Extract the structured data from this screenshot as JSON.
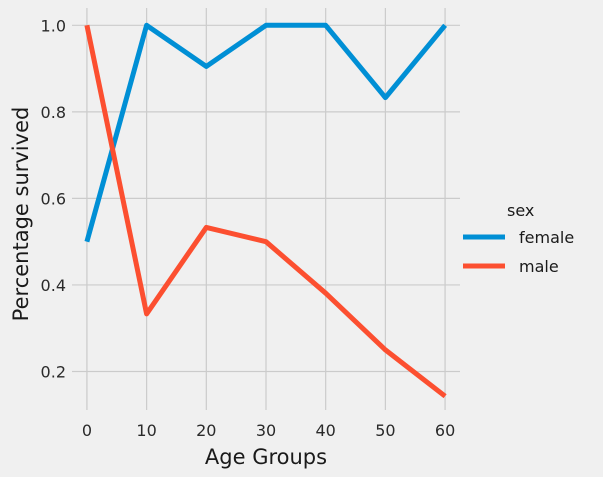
{
  "chart_data": {
    "type": "line",
    "title": "",
    "xlabel": "Age Groups",
    "ylabel": "Percentage survived",
    "x": [
      0,
      10,
      20,
      30,
      40,
      50,
      60
    ],
    "x_ticks": [
      "0",
      "10",
      "20",
      "30",
      "40",
      "50",
      "60"
    ],
    "y_ticks": [
      "0.2",
      "0.4",
      "0.6",
      "0.8",
      "1.0"
    ],
    "xlim": [
      -2.5,
      62.5
    ],
    "ylim": [
      0.111,
      1.04
    ],
    "grid": true,
    "legend": {
      "title": "sex",
      "placement": "right"
    },
    "series": [
      {
        "name": "female",
        "color": "#008fd5",
        "values": [
          0.5,
          1.0,
          0.905,
          1.0,
          1.0,
          0.833,
          1.0
        ]
      },
      {
        "name": "male",
        "color": "#fc4f30",
        "values": [
          1.0,
          0.333,
          0.533,
          0.5,
          0.381,
          0.25,
          0.143
        ]
      }
    ]
  }
}
